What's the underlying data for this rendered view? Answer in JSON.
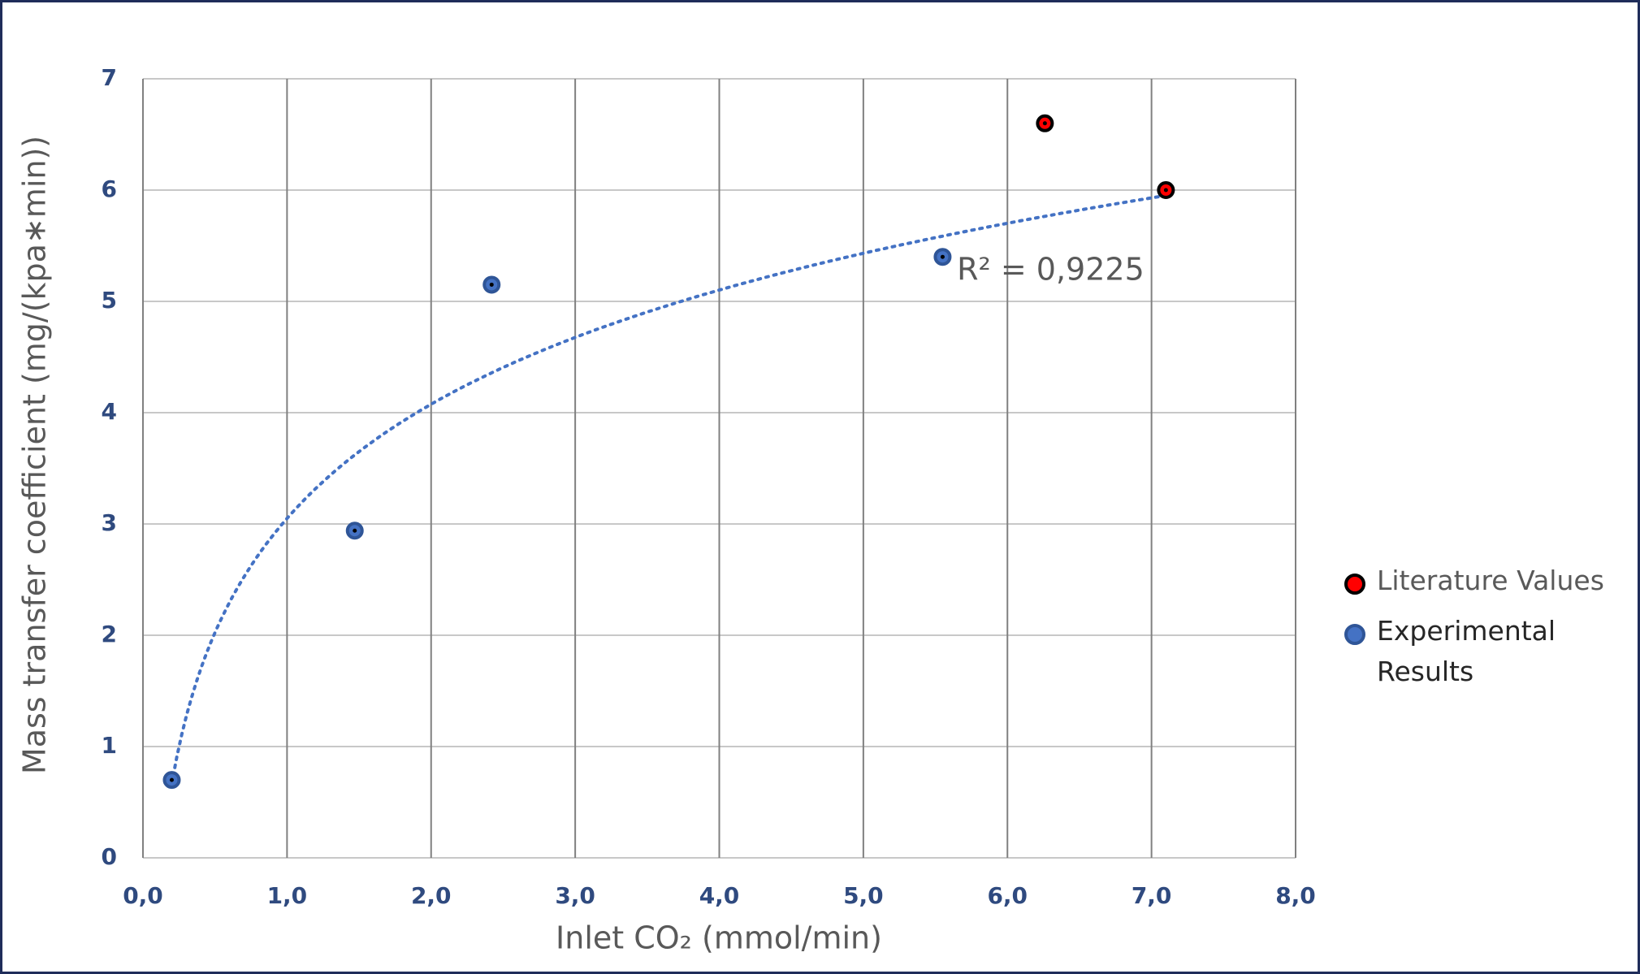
{
  "chart_data": {
    "type": "scatter",
    "x_label": "Inlet CO₂ (mmol/min)",
    "y_label": "Mass transfer coefficient (mg/(kpa∗min))",
    "xlim": [
      0,
      8
    ],
    "xticks": [
      {
        "value": 0,
        "label": "0,0"
      },
      {
        "value": 1,
        "label": "1,0"
      },
      {
        "value": 2,
        "label": "2,0"
      },
      {
        "value": 3,
        "label": "3,0"
      },
      {
        "value": 4,
        "label": "4,0"
      },
      {
        "value": 5,
        "label": "5,0"
      },
      {
        "value": 6,
        "label": "6,0"
      },
      {
        "value": 7,
        "label": "7,0"
      },
      {
        "value": 8,
        "label": "8,0"
      }
    ],
    "ylim": [
      0,
      7
    ],
    "yticks": [
      0,
      1,
      2,
      3,
      4,
      5,
      6,
      7
    ],
    "grid": true,
    "series": [
      {
        "name": "Literature Values",
        "color": "#ff0000",
        "edge": "#000000",
        "x": [
          6.26,
          7.1
        ],
        "values": [
          6.6,
          6.0
        ]
      },
      {
        "name": "Experimental Results",
        "color": "#4472c4",
        "edge": "#2f5597",
        "x": [
          0.2,
          1.47,
          2.42,
          5.55
        ],
        "values": [
          0.7,
          2.94,
          5.15,
          5.4
        ]
      }
    ],
    "trendline": {
      "kind": "log",
      "a": 1.48,
      "b": 3.05,
      "x": [
        0.2,
        7.1
      ],
      "color": "#4472c4",
      "label": "R² = 0,9225"
    }
  }
}
